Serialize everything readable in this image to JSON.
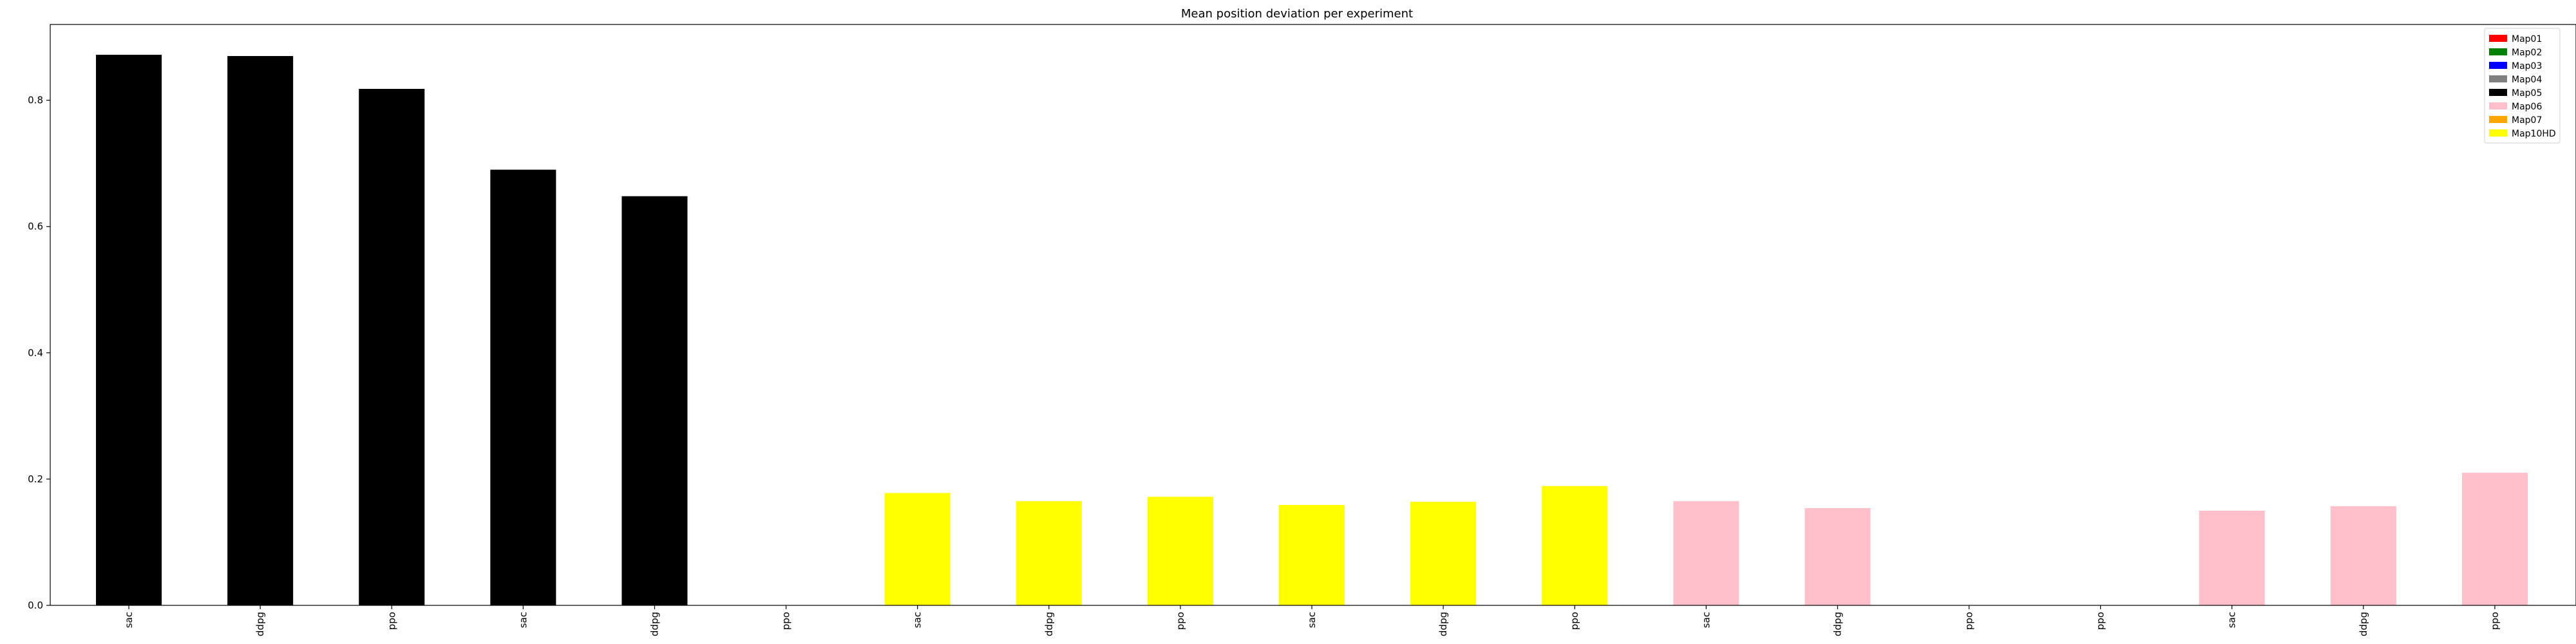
{
  "chart_data": {
    "type": "bar",
    "title": "Mean position deviation per experiment",
    "xlabel": "",
    "ylabel": "",
    "ylim": [
      0,
      0.92
    ],
    "yticks": [
      "0.0",
      "0.2",
      "0.4",
      "0.6",
      "0.8"
    ],
    "grid": false,
    "legend_position": "top-right",
    "categories": [
      "sac",
      "ddpg",
      "ppo",
      "sac",
      "ddpg",
      "ppo",
      "sac",
      "ddpg",
      "ppo",
      "sac",
      "ddpg",
      "ppo",
      "sac",
      "ddpg",
      "ppo",
      "ppo",
      "sac",
      "ddpg",
      "ppo"
    ],
    "values": [
      0.872,
      0.87,
      0.818,
      0.69,
      0.648,
      0.0,
      0.178,
      0.165,
      0.172,
      0.159,
      0.164,
      0.189,
      0.165,
      0.154,
      0.0,
      0.0,
      0.15,
      0.157,
      0.21
    ],
    "bar_colors": [
      "#000000",
      "#000000",
      "#000000",
      "#000000",
      "#000000",
      "#000000",
      "#ffff00",
      "#ffff00",
      "#ffff00",
      "#ffff00",
      "#ffff00",
      "#ffff00",
      "#ffc0cb",
      "#ffc0cb",
      "#ffc0cb",
      "#ffc0cb",
      "#ffc0cb",
      "#ffc0cb",
      "#ffc0cb"
    ],
    "legend": [
      {
        "label": "Map01",
        "color": "#ff0000"
      },
      {
        "label": "Map02",
        "color": "#008000"
      },
      {
        "label": "Map03",
        "color": "#0000ff"
      },
      {
        "label": "Map04",
        "color": "#808080"
      },
      {
        "label": "Map05",
        "color": "#000000"
      },
      {
        "label": "Map06",
        "color": "#ffc0cb"
      },
      {
        "label": "Map07",
        "color": "#ffa500"
      },
      {
        "label": "Map10HD",
        "color": "#ffff00"
      }
    ]
  }
}
